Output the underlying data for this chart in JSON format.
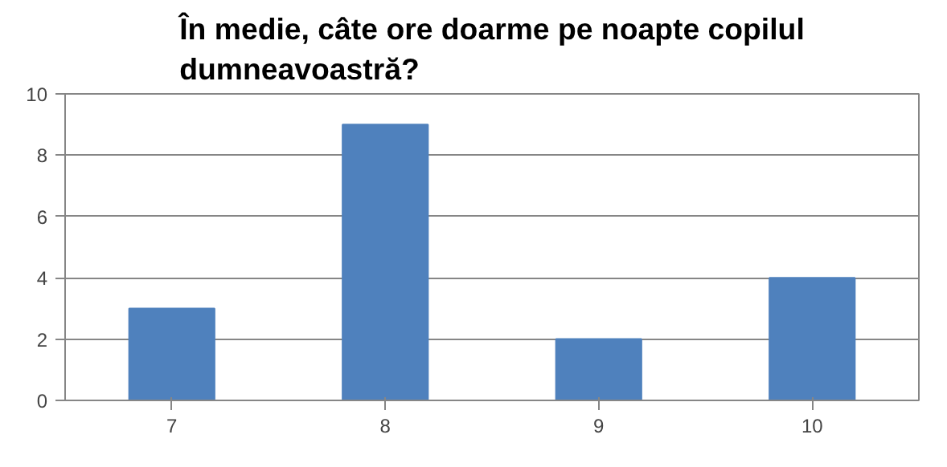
{
  "chart_data": {
    "type": "bar",
    "title": "În medie, câte ore doarme pe noapte copilul dumneavoastră?",
    "categories": [
      "7",
      "8",
      "9",
      "10"
    ],
    "values": [
      3,
      9,
      2,
      4
    ],
    "color": "#4f81bd",
    "ylim": [
      0,
      10
    ],
    "yticks": [
      0,
      2,
      4,
      6,
      8,
      10
    ],
    "grid": "y"
  }
}
